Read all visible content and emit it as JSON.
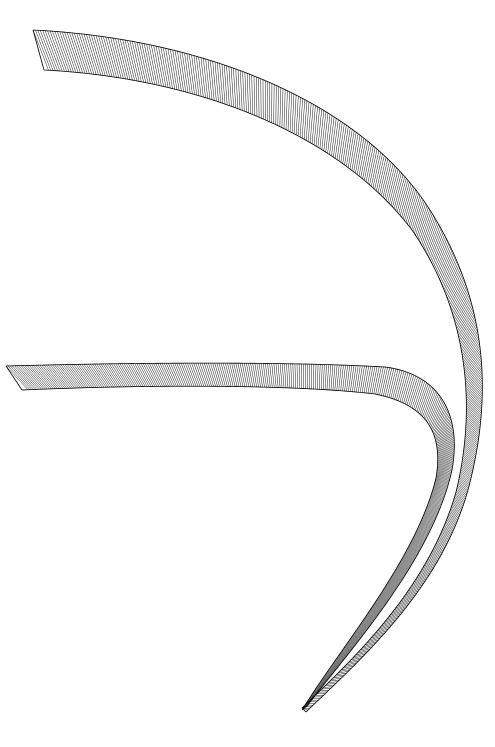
{
  "figure": {
    "background": "#ffffff",
    "stroke_color": "#000000",
    "description_visible_text": "",
    "ribbons": [
      {
        "id": "outer-ribbon",
        "shape": "hatched-curved-band",
        "hatch": "dense-diagonal"
      },
      {
        "id": "inner-ribbon",
        "shape": "hatched-curved-band",
        "hatch": "dense-diagonal"
      }
    ]
  }
}
